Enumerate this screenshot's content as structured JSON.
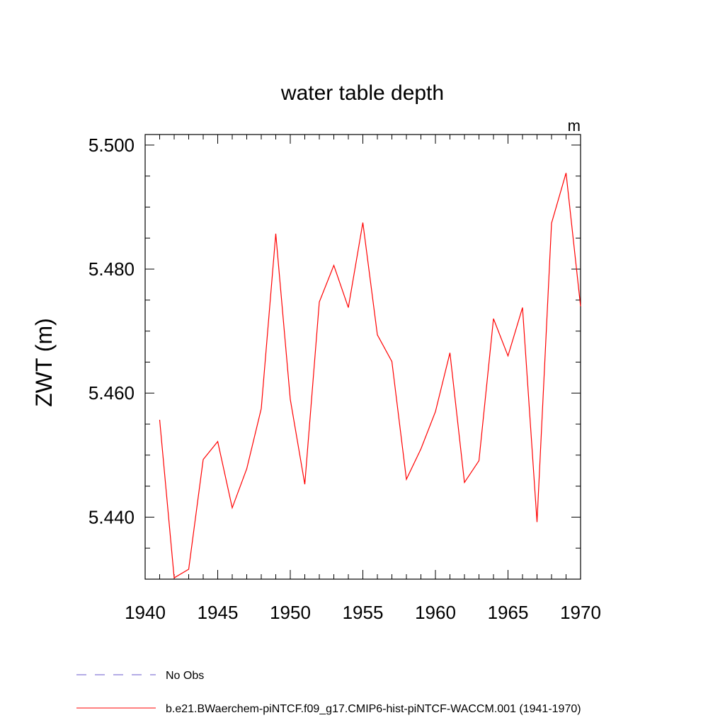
{
  "chart_data": {
    "type": "line",
    "title": "water table depth",
    "units": "m",
    "ylabel": "ZWT  (m)",
    "xlabel": "",
    "xlim": [
      1940,
      1970
    ],
    "ylim": [
      5.43,
      5.5017
    ],
    "xticks": [
      1940,
      1945,
      1950,
      1955,
      1960,
      1965,
      1970
    ],
    "xtick_labels": [
      "1940",
      "1945",
      "1950",
      "1955",
      "1960",
      "1965",
      "1970"
    ],
    "yticks": [
      5.44,
      5.46,
      5.48,
      5.5
    ],
    "ytick_labels": [
      "5.440",
      "5.460",
      "5.480",
      "5.500"
    ],
    "series": [
      {
        "name": "b.e21.BWaerchem-piNTCF.f09_g17.CMIP6-hist-piNTCF-WACCM.001 (1941-1970)",
        "color": "#ff0000",
        "style": "solid",
        "x": [
          1941,
          1942,
          1943,
          1944,
          1945,
          1946,
          1947,
          1948,
          1949,
          1950,
          1951,
          1952,
          1953,
          1954,
          1955,
          1956,
          1957,
          1958,
          1959,
          1960,
          1961,
          1962,
          1963,
          1964,
          1965,
          1966,
          1967,
          1968,
          1969,
          1970
        ],
        "values": [
          5.4557,
          5.4302,
          5.4316,
          5.4493,
          5.4522,
          5.4415,
          5.4478,
          5.4575,
          5.4857,
          5.459,
          5.4453,
          5.4747,
          5.4806,
          5.4738,
          5.4875,
          5.4694,
          5.4651,
          5.4461,
          5.451,
          5.457,
          5.4665,
          5.4456,
          5.4491,
          5.472,
          5.466,
          5.4738,
          5.4392,
          5.4874,
          5.4955,
          5.474
        ]
      }
    ],
    "legend": {
      "placement": "bottom-left",
      "entries": [
        {
          "label": "No Obs",
          "color": "#6a5acd",
          "style": "dashed"
        },
        {
          "label": "b.e21.BWaerchem-piNTCF.f09_g17.CMIP6-hist-piNTCF-WACCM.001 (1941-1970)",
          "color": "#ff0000",
          "style": "solid"
        }
      ]
    },
    "grid": false
  }
}
